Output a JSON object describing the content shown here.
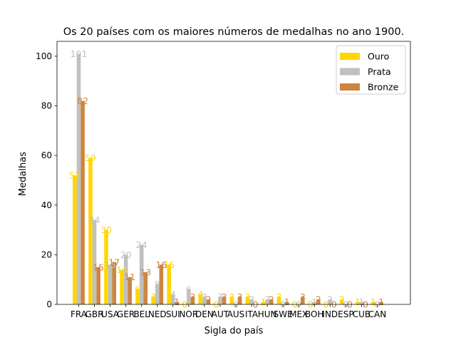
{
  "chart_data": {
    "type": "bar",
    "title": "Os 20 países com os maiores números de medalhas no ano 1900.",
    "xlabel": "Sigla do país",
    "ylabel": "Medalhas",
    "ylim": [
      0,
      106
    ],
    "yticks": [
      0,
      20,
      40,
      60,
      80,
      100
    ],
    "legend_position": "top-right",
    "categories": [
      "FRA",
      "GBR",
      "USA",
      "GER",
      "BEL",
      "NED",
      "SUI",
      "NOR",
      "DEN",
      "AUT",
      "AUS",
      "ITA",
      "HUN",
      "SWE",
      "MEX",
      "BOH",
      "IND",
      "ESP",
      "CUB",
      "CAN"
    ],
    "series": [
      {
        "name": "Ouro",
        "color": "#ffd700",
        "values": [
          52,
          59,
          30,
          14,
          6,
          3,
          16,
          0,
          4,
          0,
          3,
          3,
          1,
          3,
          0,
          0,
          0,
          2,
          1,
          1
        ]
      },
      {
        "name": "Prata",
        "color": "#c0c0c0",
        "values": [
          101,
          34,
          16,
          20,
          24,
          8,
          4,
          6,
          3,
          3,
          0,
          2,
          2,
          0,
          0,
          1,
          2,
          0,
          1,
          0
        ]
      },
      {
        "name": "Bronze",
        "color": "#cd853f",
        "values": [
          82,
          15,
          17,
          11,
          13,
          16,
          1,
          3,
          2,
          3,
          3,
          0,
          2,
          1,
          3,
          2,
          0,
          0,
          0,
          1
        ]
      }
    ]
  }
}
